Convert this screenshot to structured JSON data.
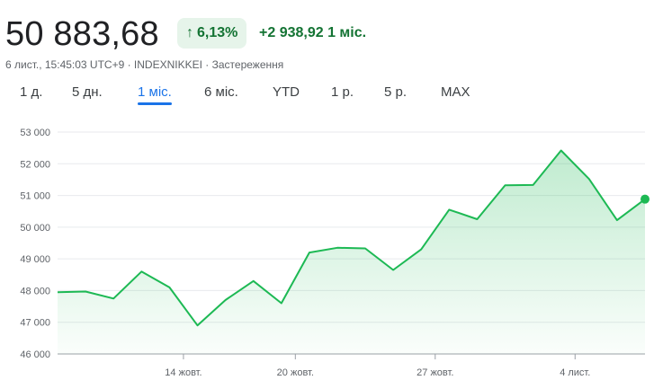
{
  "header": {
    "price": "50 883,68",
    "change_pct": "6,13%",
    "change_abs": "+2 938,92 1 міс.",
    "meta": "6 лист., 15:45:03 UTC+9 · INDEXNIKKEI · Застереження",
    "arrow_icon": "arrow-up-icon"
  },
  "tabs": [
    {
      "label": "1 д.",
      "active": false
    },
    {
      "label": "5 дн.",
      "active": false
    },
    {
      "label": "1 міс.",
      "active": true
    },
    {
      "label": "6 міс.",
      "active": false
    },
    {
      "label": "YTD",
      "active": false
    },
    {
      "label": "1 р.",
      "active": false
    },
    {
      "label": "5 р.",
      "active": false
    },
    {
      "label": "MAX",
      "active": false
    }
  ],
  "colors": {
    "line": "#1db954",
    "accent_positive": "#137333",
    "badge_bg": "#e6f4ea",
    "tab_active": "#1a73e8"
  },
  "chart_data": {
    "type": "area",
    "y_ticks": [
      46000,
      47000,
      48000,
      49000,
      50000,
      51000,
      52000,
      53000
    ],
    "y_tick_labels": [
      "46 000",
      "47 000",
      "48 000",
      "49 000",
      "50 000",
      "51 000",
      "52 000",
      "53 000"
    ],
    "ylim": [
      46000,
      53000
    ],
    "x_tick_labels": [
      "14 жовт.",
      "20 жовт.",
      "27 жовт.",
      "4 лист."
    ],
    "x_tick_index": [
      4.5,
      8.5,
      13.5,
      18.5
    ],
    "grid": true,
    "series": [
      {
        "values": [
          47950,
          47970,
          47750,
          48600,
          48100,
          46900,
          47700,
          48300,
          47600,
          49200,
          49350,
          49330,
          48650,
          49300,
          50550,
          50250,
          51320,
          51330,
          52420,
          51520,
          50220,
          50884
        ]
      }
    ]
  }
}
